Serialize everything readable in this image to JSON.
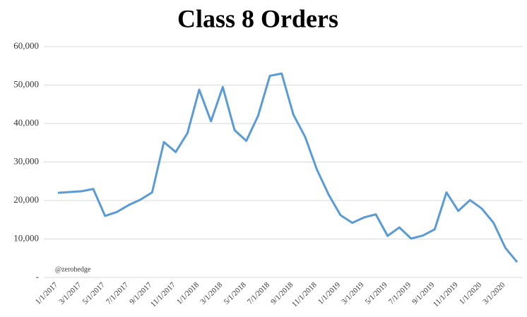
{
  "chart_data": {
    "type": "line",
    "title": "Class 8 Orders",
    "annotation": "@zerohedge",
    "categories": [
      "1/1/2017",
      null,
      "3/1/2017",
      null,
      "5/1/2017",
      null,
      "7/1/2017",
      null,
      "9/1/2017",
      null,
      "11/1/2017",
      null,
      "1/1/2018",
      null,
      "3/1/2018",
      null,
      "5/1/2018",
      null,
      "7/1/2018",
      null,
      "9/1/2018",
      null,
      "11/1/2018",
      null,
      "1/1/2019",
      null,
      "3/1/2019",
      null,
      "5/1/2019",
      null,
      "7/1/2019",
      null,
      "9/1/2019",
      null,
      "11/1/2019",
      null,
      "1/1/2020",
      null,
      "3/1/2020",
      null
    ],
    "series": [
      {
        "name": "Class 8 Orders",
        "color": "#5b9bd5",
        "values": [
          22000,
          22200,
          22400,
          23000,
          16000,
          17000,
          18800,
          20200,
          22100,
          35200,
          32600,
          37500,
          48800,
          40600,
          49500,
          38300,
          35500,
          42000,
          52400,
          53000,
          42300,
          36500,
          28000,
          21500,
          16200,
          14200,
          15600,
          16400,
          10800,
          13000,
          10100,
          10900,
          12500,
          22100,
          17300,
          20100,
          17900,
          14200,
          7700,
          4000
        ]
      }
    ],
    "ylim": [
      0,
      60000
    ],
    "yticks": [
      {
        "value": 0,
        "label": "-"
      },
      {
        "value": 10000,
        "label": "10,000"
      },
      {
        "value": 20000,
        "label": "20,000"
      },
      {
        "value": 30000,
        "label": "30,000"
      },
      {
        "value": 40000,
        "label": "40,000"
      },
      {
        "value": 50000,
        "label": "50,000"
      },
      {
        "value": 60000,
        "label": "60,000"
      }
    ],
    "grid": true
  }
}
